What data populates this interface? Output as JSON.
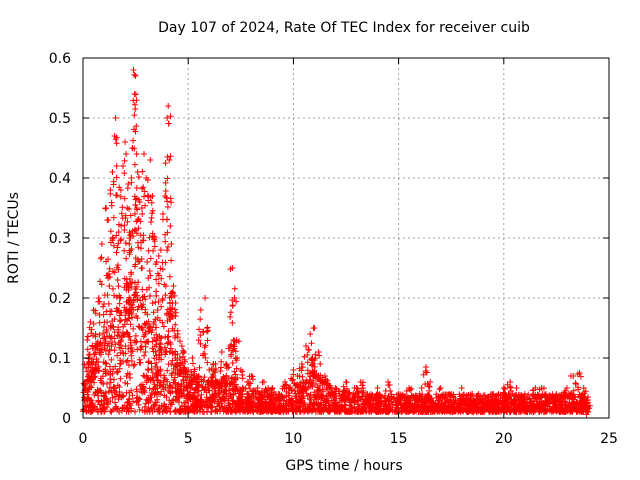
{
  "chart_data": {
    "type": "scatter",
    "title": "Day 107 of 2024, Rate Of TEC Index for receiver cuib",
    "xlabel": "GPS time / hours",
    "ylabel": "ROTI / TECUs",
    "xlim": [
      0,
      25
    ],
    "ylim": [
      0,
      0.6
    ],
    "xticks": [
      0,
      5,
      10,
      15,
      20,
      25
    ],
    "xtick_labels": [
      "0",
      "5",
      "10",
      "15",
      "20",
      "25"
    ],
    "yticks": [
      0,
      0.1,
      0.2,
      0.3,
      0.4,
      0.5,
      0.6
    ],
    "ytick_labels": [
      "0",
      "0.1",
      "0.2",
      "0.3",
      "0.4",
      "0.5",
      "0.6"
    ],
    "grid": true,
    "marker": "+",
    "color": "#ff0000",
    "series": [
      {
        "name": "ROTI",
        "x": [
          0.1,
          0.2,
          0.35,
          0.5,
          0.6,
          0.75,
          0.9,
          1.0,
          1.1,
          1.2,
          1.3,
          1.4,
          1.5,
          1.55,
          1.6,
          1.7,
          1.8,
          1.9,
          2.0,
          2.05,
          2.1,
          2.15,
          2.2,
          2.25,
          2.3,
          2.35,
          2.4,
          2.45,
          2.5,
          2.55,
          2.6,
          2.7,
          2.8,
          2.9,
          3.0,
          3.1,
          3.2,
          3.3,
          3.4,
          3.5,
          3.6,
          3.7,
          3.8,
          3.9,
          4.0,
          4.05,
          4.1,
          4.15,
          4.2,
          4.3,
          4.4,
          4.5,
          4.6,
          4.8,
          5.0,
          5.2,
          5.4,
          5.6,
          5.8,
          5.9,
          6.0,
          6.2,
          6.4,
          6.6,
          6.8,
          7.0,
          7.1,
          7.2,
          7.3,
          7.5,
          7.8,
          8.0,
          8.3,
          8.6,
          9.0,
          9.3,
          9.6,
          10.0,
          10.2,
          10.4,
          10.6,
          10.8,
          11.0,
          11.2,
          11.5,
          12.0,
          12.5,
          13.0,
          13.5,
          14.0,
          14.5,
          15.0,
          15.5,
          16.0,
          16.3,
          16.5,
          17.0,
          17.5,
          18.0,
          18.5,
          19.0,
          19.5,
          20.0,
          20.3,
          20.6,
          21.0,
          21.5,
          22.0,
          22.5,
          23.0,
          23.3,
          23.6,
          23.8,
          24.0,
          0.3,
          0.8,
          1.25,
          1.65,
          2.2,
          2.6,
          3.05,
          3.55,
          4.25,
          4.7,
          5.5,
          6.3,
          7.15,
          8.8,
          10.9,
          13.2,
          16.1,
          18.8,
          21.8,
          23.9
        ],
        "y": [
          0.06,
          0.13,
          0.16,
          0.18,
          0.14,
          0.2,
          0.29,
          0.19,
          0.35,
          0.33,
          0.38,
          0.41,
          0.47,
          0.5,
          0.42,
          0.31,
          0.38,
          0.42,
          0.46,
          0.44,
          0.35,
          0.39,
          0.29,
          0.3,
          0.4,
          0.45,
          0.58,
          0.54,
          0.57,
          0.44,
          0.41,
          0.36,
          0.35,
          0.44,
          0.4,
          0.37,
          0.43,
          0.37,
          0.3,
          0.26,
          0.27,
          0.28,
          0.34,
          0.37,
          0.5,
          0.52,
          0.43,
          0.32,
          0.29,
          0.22,
          0.17,
          0.14,
          0.1,
          0.11,
          0.08,
          0.1,
          0.07,
          0.18,
          0.2,
          0.15,
          0.08,
          0.09,
          0.06,
          0.11,
          0.09,
          0.12,
          0.25,
          0.2,
          0.13,
          0.08,
          0.06,
          0.07,
          0.05,
          0.06,
          0.05,
          0.04,
          0.06,
          0.08,
          0.07,
          0.09,
          0.12,
          0.14,
          0.15,
          0.11,
          0.07,
          0.05,
          0.06,
          0.05,
          0.04,
          0.05,
          0.06,
          0.04,
          0.05,
          0.04,
          0.085,
          0.06,
          0.05,
          0.04,
          0.05,
          0.04,
          0.03,
          0.04,
          0.05,
          0.06,
          0.05,
          0.04,
          0.05,
          0.04,
          0.04,
          0.05,
          0.07,
          0.075,
          0.05,
          0.03,
          0.1,
          0.12,
          0.22,
          0.23,
          0.3,
          0.33,
          0.26,
          0.18,
          0.21,
          0.12,
          0.07,
          0.09,
          0.13,
          0.05,
          0.1,
          0.06,
          0.05,
          0.04,
          0.05,
          0.02
        ],
        "band": {
          "description": "dense low-value cloud of points",
          "x": [
            0,
            0.5,
            1,
            1.5,
            2,
            2.5,
            3,
            3.5,
            4,
            4.5,
            5,
            5.5,
            6,
            6.5,
            7,
            7.5,
            8,
            8.5,
            9,
            9.5,
            10,
            10.5,
            11,
            11.5,
            12,
            13,
            14,
            15,
            16,
            17,
            18,
            19,
            20,
            21,
            22,
            23,
            24
          ],
          "y_low": [
            0.01,
            0.01,
            0.01,
            0.01,
            0.01,
            0.01,
            0.01,
            0.01,
            0.01,
            0.01,
            0.01,
            0.01,
            0.01,
            0.01,
            0.01,
            0.01,
            0.01,
            0.01,
            0.01,
            0.01,
            0.01,
            0.01,
            0.01,
            0.01,
            0.01,
            0.01,
            0.01,
            0.01,
            0.01,
            0.01,
            0.01,
            0.01,
            0.01,
            0.01,
            0.01,
            0.01,
            0.01
          ],
          "y_high": [
            0.09,
            0.12,
            0.14,
            0.17,
            0.22,
            0.24,
            0.2,
            0.15,
            0.14,
            0.1,
            0.08,
            0.07,
            0.07,
            0.07,
            0.07,
            0.05,
            0.05,
            0.04,
            0.04,
            0.04,
            0.06,
            0.07,
            0.08,
            0.06,
            0.05,
            0.04,
            0.04,
            0.04,
            0.04,
            0.04,
            0.04,
            0.04,
            0.04,
            0.04,
            0.04,
            0.04,
            0.04
          ]
        }
      }
    ]
  }
}
